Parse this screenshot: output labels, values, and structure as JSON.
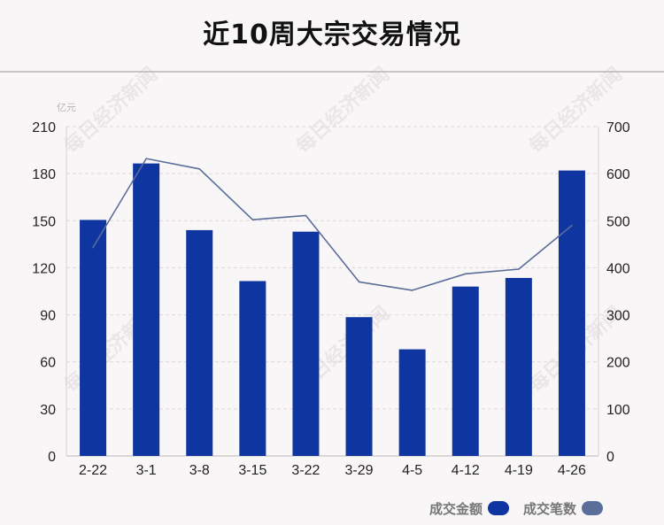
{
  "title": "近10周大宗交易情况",
  "watermark": "每日经济新闻",
  "chart_data": {
    "type": "bar",
    "categories": [
      "2-22",
      "3-1",
      "3-8",
      "3-15",
      "3-22",
      "3-29",
      "4-5",
      "4-12",
      "4-19",
      "4-26"
    ],
    "series": [
      {
        "name": "成交金额",
        "type": "bar",
        "axis": "left",
        "color": "#0f35a0",
        "values": [
          150.5,
          186.5,
          144.0,
          111.5,
          143.0,
          88.5,
          68.0,
          108.0,
          113.5,
          182.0
        ]
      },
      {
        "name": "成交笔数",
        "type": "line",
        "axis": "right",
        "color": "#5b6e9a",
        "values": [
          443,
          632,
          610,
          502,
          511,
          370,
          352,
          387,
          397,
          490
        ]
      }
    ],
    "ylabel": "亿元",
    "ylim": [
      0,
      210
    ],
    "y_ticks": [
      0,
      30,
      60,
      90,
      120,
      150,
      180,
      210
    ],
    "y2lim": [
      0,
      700
    ],
    "y2_ticks": [
      0,
      100,
      200,
      300,
      400,
      500,
      600,
      700
    ],
    "grid": true,
    "legend_position": "bottom-right"
  },
  "legend": {
    "amount_label": "成交金额",
    "count_label": "成交笔数",
    "amount_color": "#0f35a0",
    "count_color": "#5b6e9a"
  }
}
